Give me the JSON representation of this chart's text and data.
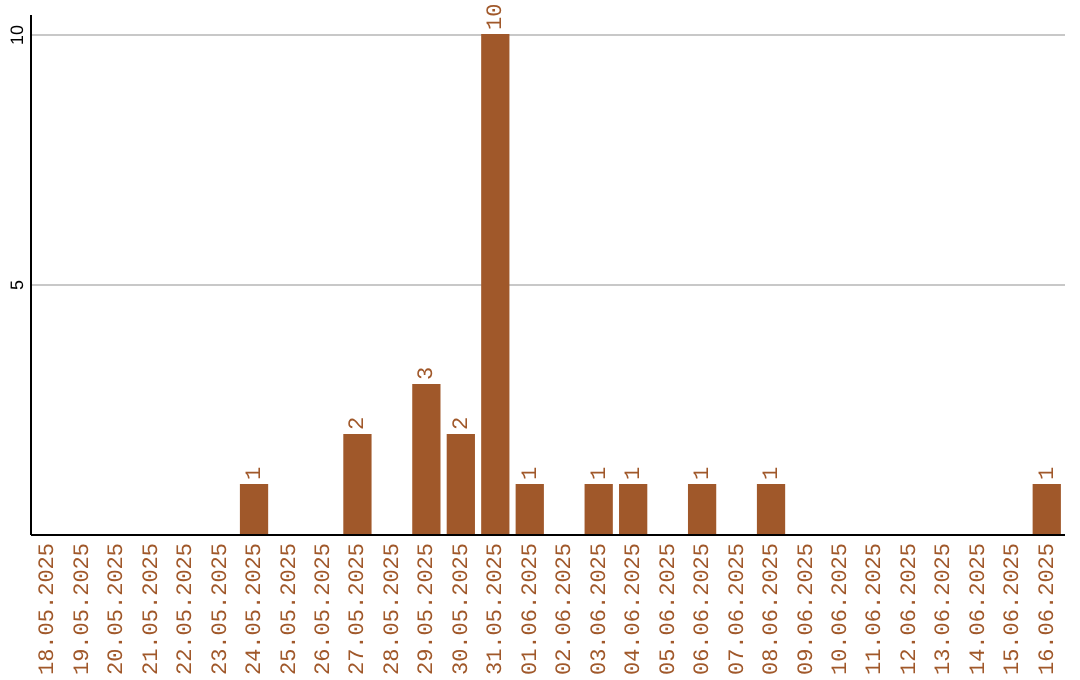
{
  "chart_data": {
    "type": "bar",
    "categories": [
      "18.05.2025",
      "19.05.2025",
      "20.05.2025",
      "21.05.2025",
      "22.05.2025",
      "23.05.2025",
      "24.05.2025",
      "25.05.2025",
      "26.05.2025",
      "27.05.2025",
      "28.05.2025",
      "29.05.2025",
      "30.05.2025",
      "31.05.2025",
      "01.06.2025",
      "02.06.2025",
      "03.06.2025",
      "04.06.2025",
      "05.06.2025",
      "06.06.2025",
      "07.06.2025",
      "08.06.2025",
      "09.06.2025",
      "10.06.2025",
      "11.06.2025",
      "12.06.2025",
      "13.06.2025",
      "14.06.2025",
      "15.06.2025",
      "16.06.2025"
    ],
    "values": [
      0,
      0,
      0,
      0,
      0,
      0,
      1,
      0,
      0,
      2,
      0,
      3,
      2,
      10,
      1,
      0,
      1,
      1,
      0,
      1,
      0,
      1,
      0,
      0,
      0,
      0,
      0,
      0,
      0,
      1
    ],
    "value_labels": [
      null,
      null,
      null,
      null,
      null,
      null,
      "1",
      null,
      null,
      "2",
      null,
      "3",
      "2",
      "10",
      "1",
      null,
      "1",
      "1",
      null,
      "1",
      null,
      "1",
      null,
      null,
      null,
      null,
      null,
      null,
      null,
      "1"
    ],
    "color": "#a0582a",
    "ylim": [
      0,
      10.4
    ],
    "yticks": [
      5,
      10
    ],
    "grid": "y"
  }
}
